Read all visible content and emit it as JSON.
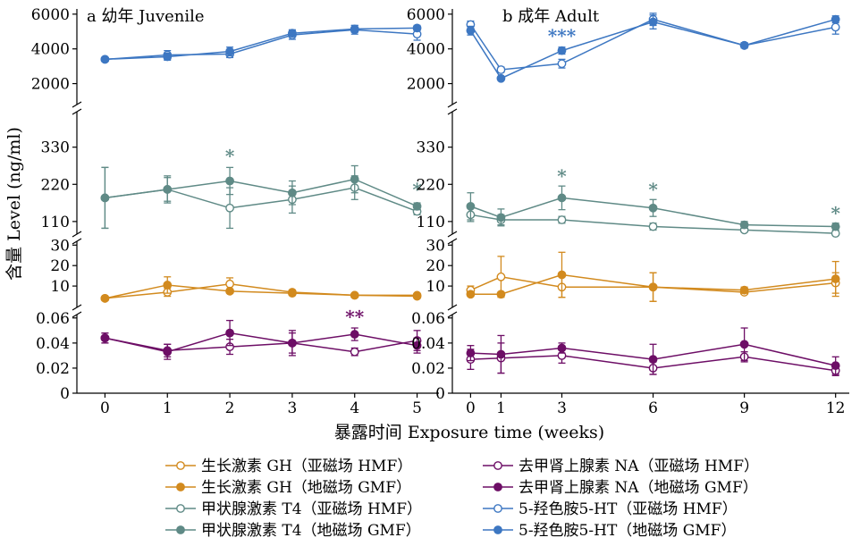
{
  "chart_data": {
    "type": "line",
    "ylabel": "含量 Level (ng/ml)",
    "xlabel": "暴露时间 Exposure time (weeks)",
    "colors": {
      "GH": "#d28a1e",
      "T4": "#5f8a86",
      "NA": "#6d0e66",
      "HT": "#3d77c2"
    },
    "panels": [
      {
        "id": "a",
        "title": "a 幼年 Juvenile",
        "x": [
          0,
          1,
          2,
          3,
          4,
          5
        ],
        "xticks": [
          "0",
          "1",
          "2",
          "3",
          "4",
          "5"
        ],
        "bands": [
          {
            "name": "5-HT",
            "ylim": [
              1000,
              6300
            ],
            "ticks": [
              2000,
              4000,
              6000
            ],
            "series": [
              {
                "name": "5-羟色胺5-HT（亚磁场 HMF）",
                "key": "HT",
                "filled": false,
                "values": [
                  3400,
                  3650,
                  3700,
                  4800,
                  5100,
                  4850
                ],
                "errors": [
                  100,
                  250,
                  200,
                  250,
                  250,
                  350
                ]
              },
              {
                "name": "5-羟色胺5-HT（地磁场 GMF）",
                "key": "HT",
                "filled": true,
                "values": [
                  3400,
                  3550,
                  3850,
                  4900,
                  5150,
                  5200
                ],
                "errors": [
                  100,
                  200,
                  250,
                  200,
                  200,
                  150
                ]
              }
            ],
            "stars": []
          },
          {
            "name": "T4",
            "ylim": [
              70,
              390
            ],
            "ticks": [
              110,
              220,
              330
            ],
            "series": [
              {
                "name": "甲状腺激素 T4（亚磁场 HMF）",
                "key": "T4",
                "filled": false,
                "values": [
                  180,
                  205,
                  150,
                  175,
                  210,
                  140
                ],
                "errors": [
                  90,
                  35,
                  60,
                  40,
                  35,
                  10
                ]
              },
              {
                "name": "甲状腺激素 T4（地磁场 GMF）",
                "key": "T4",
                "filled": true,
                "values": [
                  180,
                  205,
                  230,
                  195,
                  235,
                  155
                ],
                "errors": [
                  90,
                  40,
                  40,
                  35,
                  40,
                  10
                ]
              }
            ],
            "stars": [
              {
                "x": 2,
                "text": "*",
                "key": "T4",
                "y": 285
              },
              {
                "x": 5,
                "text": "*",
                "key": "T4",
                "y": 186
              }
            ]
          },
          {
            "name": "GH",
            "ylim": [
              0,
              31
            ],
            "ticks": [
              10,
              20,
              30
            ],
            "series": [
              {
                "name": "生长激素 GH（亚磁场 HMF）",
                "key": "GH",
                "filled": false,
                "values": [
                  4,
                  7,
                  11,
                  7,
                  5.5,
                  5.5
                ],
                "errors": [
                  0.5,
                  2,
                  3,
                  1,
                  0.5,
                  0.5
                ]
              },
              {
                "name": "生长激素 GH（地磁场 GMF）",
                "key": "GH",
                "filled": true,
                "values": [
                  4,
                  10.5,
                  7.5,
                  6.5,
                  5.5,
                  5
                ],
                "errors": [
                  0.5,
                  4,
                  1,
                  1,
                  0.5,
                  0.5
                ]
              }
            ],
            "stars": []
          },
          {
            "name": "NA",
            "ylim": [
              0,
              0.062
            ],
            "ticks": [
              0,
              0.02,
              0.04,
              0.06
            ],
            "series": [
              {
                "name": "去甲肾上腺素 NA（亚磁场 HMF）",
                "key": "NA",
                "filled": false,
                "values": [
                  0.044,
                  0.034,
                  0.037,
                  0.04,
                  0.033,
                  0.042
                ],
                "errors": [
                  0.004,
                  0.005,
                  0.006,
                  0.008,
                  0.003,
                  0.008
                ]
              },
              {
                "name": "去甲肾上腺素 NA（地磁场 GMF）",
                "key": "NA",
                "filled": true,
                "values": [
                  0.044,
                  0.033,
                  0.048,
                  0.04,
                  0.047,
                  0.038
                ],
                "errors": [
                  0.004,
                  0.006,
                  0.01,
                  0.01,
                  0.005,
                  0.006
                ]
              }
            ],
            "stars": [
              {
                "x": 4,
                "text": "**",
                "key": "NA",
                "y": 0.056
              }
            ]
          }
        ]
      },
      {
        "id": "b",
        "title": "b 成年 Adult",
        "x": [
          0,
          1,
          3,
          6,
          9,
          12
        ],
        "xticks": [
          "0",
          "1",
          "3",
          "6",
          "9",
          "12"
        ],
        "bands": [
          {
            "name": "5-HT",
            "ylim": [
              1000,
              6300
            ],
            "ticks": [
              2000,
              4000,
              6000
            ],
            "series": [
              {
                "name": "5-羟色胺5-HT（亚磁场 HMF）",
                "key": "HT",
                "filled": false,
                "values": [
                  5400,
                  2800,
                  3150,
                  5700,
                  4200,
                  5250
                ],
                "errors": [
                  200,
                  150,
                  250,
                  350,
                  150,
                  400
                ]
              },
              {
                "name": "5-羟色胺5-HT（地磁场 GMF）",
                "key": "HT",
                "filled": true,
                "values": [
                  5050,
                  2300,
                  3900,
                  5550,
                  4200,
                  5700
                ],
                "errors": [
                  250,
                  100,
                  200,
                  400,
                  150,
                  200
                ]
              }
            ],
            "stars": [
              {
                "x": 3,
                "text": "***",
                "key": "HT",
                "y": 4400
              }
            ]
          },
          {
            "name": "T4",
            "ylim": [
              70,
              390
            ],
            "ticks": [
              110,
              220,
              330
            ],
            "series": [
              {
                "name": "甲状腺激素 T4（亚磁场 HMF）",
                "key": "T4",
                "filled": false,
                "values": [
                  130,
                  115,
                  115,
                  95,
                  85,
                  75
                ],
                "errors": [
                  20,
                  15,
                  10,
                  10,
                  5,
                  5
                ]
              },
              {
                "name": "甲状腺激素 T4（地磁场 GMF）",
                "key": "T4",
                "filled": true,
                "values": [
                  155,
                  122,
                  180,
                  150,
                  100,
                  95
                ],
                "errors": [
                  40,
                  25,
                  35,
                  25,
                  10,
                  10
                ]
              }
            ],
            "stars": [
              {
                "x": 3,
                "text": "*",
                "key": "T4",
                "y": 226
              },
              {
                "x": 6,
                "text": "*",
                "key": "T4",
                "y": 186
              },
              {
                "x": 12,
                "text": "*",
                "key": "T4",
                "y": 116
              }
            ]
          },
          {
            "name": "GH",
            "ylim": [
              0,
              31
            ],
            "ticks": [
              10,
              20,
              30
            ],
            "series": [
              {
                "name": "生长激素 GH（亚磁场 HMF）",
                "key": "GH",
                "filled": false,
                "values": [
                  8,
                  14.5,
                  9.5,
                  9.5,
                  7,
                  11.5
                ],
                "errors": [
                  2,
                  10,
                  5,
                  7,
                  1,
                  5
                ]
              },
              {
                "name": "生长激素 GH（地磁场 GMF）",
                "key": "GH",
                "filled": true,
                "values": [
                  6,
                  6,
                  15.5,
                  9.5,
                  8,
                  13.5
                ],
                "errors": [
                  1,
                  1,
                  11,
                  7,
                  1.5,
                  8.5
                ]
              }
            ],
            "stars": []
          },
          {
            "name": "NA",
            "ylim": [
              0,
              0.062
            ],
            "ticks": [
              0,
              0.02,
              0.04,
              0.06
            ],
            "series": [
              {
                "name": "去甲肾上腺素 NA（亚磁场 HMF）",
                "key": "NA",
                "filled": false,
                "values": [
                  0.027,
                  0.028,
                  0.03,
                  0.02,
                  0.029,
                  0.018
                ],
                "errors": [
                  0.008,
                  0.012,
                  0.006,
                  0.005,
                  0.004,
                  0.004
                ]
              },
              {
                "name": "去甲肾上腺素 NA（地磁场 GMF）",
                "key": "NA",
                "filled": true,
                "values": [
                  0.032,
                  0.031,
                  0.036,
                  0.027,
                  0.039,
                  0.022
                ],
                "errors": [
                  0.006,
                  0.015,
                  0.004,
                  0.012,
                  0.013,
                  0.007
                ]
              }
            ],
            "stars": []
          }
        ]
      }
    ],
    "legend": [
      {
        "label": "生长激素 GH（亚磁场 HMF）",
        "key": "GH",
        "filled": false
      },
      {
        "label": "去甲肾上腺素 NA（亚磁场 HMF）",
        "key": "NA",
        "filled": false
      },
      {
        "label": "生长激素 GH（地磁场 GMF）",
        "key": "GH",
        "filled": true
      },
      {
        "label": "去甲肾上腺素 NA（地磁场 GMF）",
        "key": "NA",
        "filled": true
      },
      {
        "label": "甲状腺激素 T4（亚磁场 HMF）",
        "key": "T4",
        "filled": false
      },
      {
        "label": "5-羟色胺5-HT（亚磁场 HMF）",
        "key": "HT",
        "filled": false
      },
      {
        "label": "甲状腺激素 T4（地磁场 GMF）",
        "key": "T4",
        "filled": true
      },
      {
        "label": "5-羟色胺5-HT（地磁场 GMF）",
        "key": "HT",
        "filled": true
      }
    ],
    "legend_placement": "bottom",
    "grid": false
  }
}
